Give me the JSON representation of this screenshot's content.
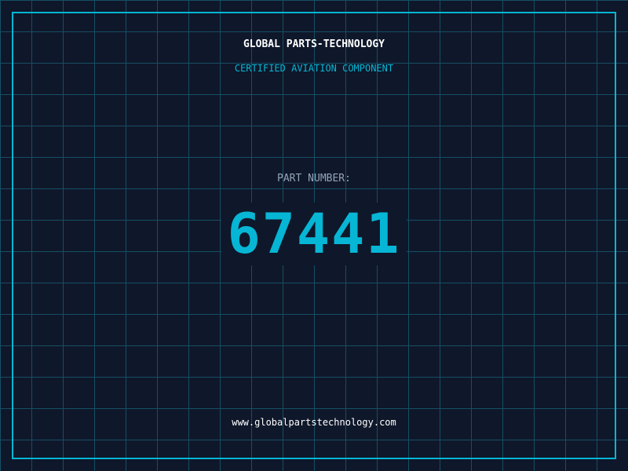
{
  "header": {
    "title": "GLOBAL PARTS-TECHNOLOGY",
    "subtitle": "CERTIFIED AVIATION COMPONENT"
  },
  "part": {
    "label": "PART NUMBER:",
    "number": "67441"
  },
  "footer": {
    "url": "www.globalpartstechnology.com"
  },
  "colors": {
    "background": "#0f172a",
    "accent": "#06b6d4",
    "grid": "#164e63",
    "label": "#94a3b8"
  }
}
